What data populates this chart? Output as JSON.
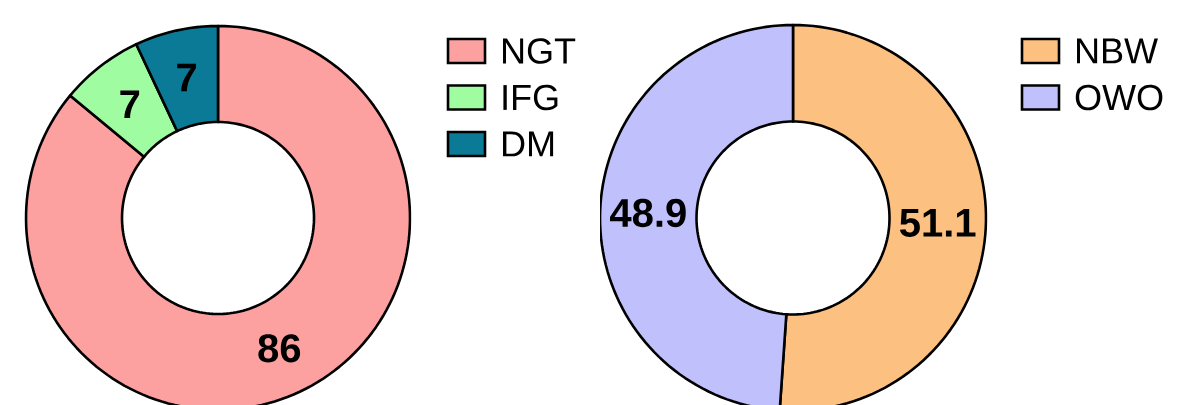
{
  "chart_data": [
    {
      "type": "donut",
      "categories": [
        "NGT",
        "IFG",
        "DM"
      ],
      "values": [
        86,
        7,
        7
      ],
      "colors": [
        "#fca0a0",
        "#a0fca0",
        "#0a7a96"
      ],
      "data_labels": true,
      "legend": "right"
    },
    {
      "type": "donut",
      "categories": [
        "NBW",
        "OWO"
      ],
      "values": [
        51.1,
        48.9
      ],
      "colors": [
        "#fcc080",
        "#c0c0fc"
      ],
      "data_labels": true,
      "legend": "right"
    }
  ]
}
